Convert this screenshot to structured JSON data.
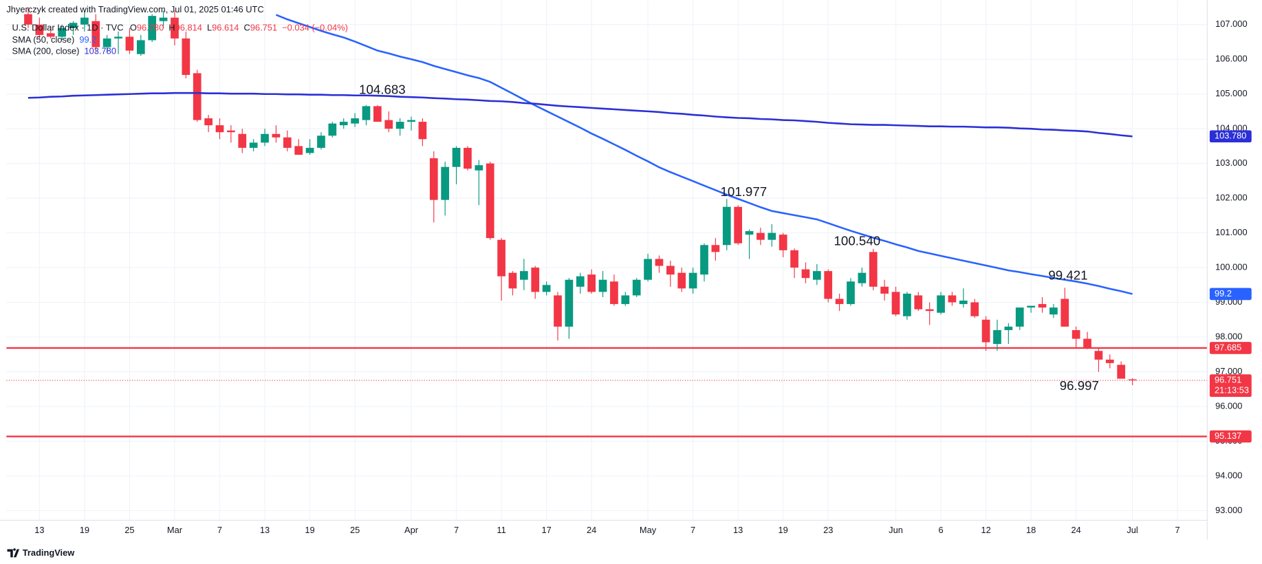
{
  "header": "Jhyerczyk created with TradingView.com, Jul 01, 2025 01:46 UTC",
  "footer": "TradingView",
  "chart_data": {
    "type": "candlestick",
    "title": "U.S. Dollar Index · 1D · TVC",
    "ohlc_legend": [
      {
        "key": "O",
        "value": "96.780"
      },
      {
        "key": "H",
        "value": "96.814"
      },
      {
        "key": "L",
        "value": "96.614"
      },
      {
        "key": "C",
        "value": "96.751"
      }
    ],
    "change": "−0.034 (−0.04%)",
    "up_color": "#089981",
    "down_color": "#f23645",
    "categories": [
      null,
      "13",
      null,
      null,
      null,
      "19",
      null,
      null,
      null,
      "25",
      null,
      null,
      null,
      "Mar",
      null,
      null,
      null,
      "7",
      null,
      null,
      null,
      "13",
      null,
      null,
      null,
      "19",
      null,
      null,
      null,
      "25",
      null,
      null,
      null,
      null,
      "Apr",
      null,
      null,
      null,
      "7",
      null,
      null,
      null,
      "11",
      null,
      null,
      null,
      "17",
      null,
      null,
      null,
      "24",
      null,
      null,
      null,
      null,
      "May",
      null,
      null,
      null,
      "7",
      null,
      null,
      null,
      "13",
      null,
      null,
      null,
      "19",
      null,
      null,
      null,
      "23",
      null,
      null,
      null,
      null,
      null,
      "Jun",
      null,
      null,
      null,
      "6",
      null,
      null,
      null,
      "12",
      null,
      null,
      null,
      "18",
      null,
      null,
      null,
      "24",
      null,
      null,
      null,
      null,
      "Jul",
      null,
      null,
      null,
      "7",
      null,
      null
    ],
    "open": [
      107.3,
      107.0,
      106.75,
      106.65,
      106.9,
      107.0,
      107.1,
      106.35,
      106.6,
      106.65,
      106.15,
      106.55,
      107.1,
      107.2,
      106.6,
      105.6,
      104.3,
      104.1,
      103.95,
      103.85,
      103.45,
      103.6,
      103.85,
      103.75,
      103.5,
      103.3,
      103.45,
      103.8,
      104.1,
      104.15,
      104.25,
      104.65,
      104.25,
      104.0,
      104.2,
      104.2,
      103.15,
      101.95,
      102.9,
      103.45,
      102.8,
      103.0,
      100.8,
      99.85,
      99.65,
      100.0,
      99.3,
      99.2,
      98.3,
      99.45,
      99.8,
      99.3,
      99.6,
      98.95,
      99.2,
      99.65,
      100.25,
      100.05,
      99.85,
      99.4,
      99.8,
      100.65,
      100.65,
      101.75,
      100.95,
      101.0,
      100.8,
      100.95,
      100.5,
      99.95,
      99.65,
      99.9,
      99.1,
      98.95,
      99.55,
      100.45,
      99.45,
      99.3,
      98.6,
      99.2,
      98.8,
      98.7,
      99.2,
      98.95,
      99.0,
      98.5,
      97.8,
      98.2,
      98.3,
      98.85,
      98.95,
      98.65,
      99.1,
      98.2,
      97.95,
      97.6,
      97.35,
      97.2,
      96.78,
      null,
      null,
      null,
      null,
      null,
      null
    ],
    "high": [
      107.5,
      107.2,
      106.95,
      107.0,
      107.1,
      107.4,
      107.3,
      106.7,
      106.8,
      106.9,
      106.7,
      107.3,
      107.4,
      107.4,
      106.8,
      105.7,
      104.4,
      104.3,
      104.1,
      104.0,
      103.7,
      104.0,
      104.1,
      103.95,
      103.7,
      103.7,
      103.9,
      104.2,
      104.3,
      104.45,
      104.683,
      104.68,
      104.5,
      104.3,
      104.35,
      104.3,
      103.35,
      103.05,
      103.5,
      103.5,
      103.1,
      103.05,
      100.85,
      99.9,
      100.25,
      100.05,
      99.6,
      99.3,
      99.7,
      99.85,
      99.95,
      99.9,
      99.8,
      99.3,
      99.7,
      100.4,
      100.35,
      100.2,
      100.0,
      100.0,
      100.7,
      100.85,
      101.977,
      101.8,
      101.1,
      101.15,
      101.25,
      101.0,
      100.55,
      100.15,
      100.1,
      99.95,
      99.25,
      99.7,
      100.0,
      100.54,
      99.65,
      99.45,
      99.3,
      99.3,
      99.0,
      99.3,
      99.3,
      99.4,
      99.1,
      98.6,
      98.5,
      98.4,
      98.85,
      98.9,
      99.15,
      98.95,
      99.421,
      98.3,
      98.15,
      97.7,
      97.5,
      97.3,
      96.814,
      null,
      null,
      null,
      null,
      null,
      null
    ],
    "low": [
      106.9,
      106.6,
      106.6,
      106.55,
      106.7,
      106.8,
      106.2,
      106.2,
      106.15,
      106.15,
      106.1,
      106.5,
      106.9,
      106.4,
      105.45,
      104.2,
      103.9,
      103.7,
      103.6,
      103.3,
      103.35,
      103.5,
      103.6,
      103.35,
      103.25,
      103.25,
      103.4,
      103.75,
      104.0,
      104.05,
      104.1,
      104.2,
      103.9,
      103.8,
      103.95,
      103.5,
      101.3,
      101.5,
      102.4,
      102.8,
      101.8,
      100.8,
      99.05,
      99.2,
      99.35,
      99.1,
      99.2,
      97.9,
      97.95,
      99.25,
      99.25,
      99.15,
      98.9,
      98.9,
      99.15,
      99.6,
      99.85,
      99.45,
      99.3,
      99.25,
      99.6,
      100.2,
      100.5,
      100.65,
      100.25,
      100.65,
      100.6,
      100.3,
      99.7,
      99.55,
      99.5,
      99.0,
      98.75,
      98.9,
      99.45,
      99.35,
      99.05,
      98.6,
      98.5,
      98.75,
      98.35,
      98.65,
      98.9,
      98.85,
      98.55,
      97.6,
      97.6,
      97.8,
      98.2,
      98.7,
      98.7,
      98.55,
      98.3,
      97.7,
      97.65,
      96.997,
      97.1,
      96.8,
      96.614,
      null,
      null,
      null,
      null,
      null,
      null
    ],
    "close": [
      107.0,
      106.7,
      106.65,
      106.9,
      107.05,
      107.2,
      106.35,
      106.6,
      106.65,
      106.25,
      106.55,
      107.25,
      107.2,
      106.6,
      105.55,
      104.25,
      104.1,
      103.9,
      103.9,
      103.45,
      103.6,
      103.85,
      103.75,
      103.45,
      103.25,
      103.45,
      103.8,
      104.15,
      104.2,
      104.3,
      104.65,
      104.2,
      104.0,
      104.2,
      104.25,
      103.7,
      101.95,
      102.9,
      103.45,
      102.85,
      102.95,
      100.85,
      99.75,
      99.4,
      99.9,
      99.3,
      99.5,
      98.3,
      99.65,
      99.75,
      99.3,
      99.65,
      98.95,
      99.2,
      99.65,
      100.25,
      100.05,
      99.8,
      99.4,
      99.85,
      100.65,
      100.45,
      101.75,
      100.7,
      101.05,
      100.8,
      101.0,
      100.5,
      100.0,
      99.7,
      99.9,
      99.1,
      98.95,
      99.6,
      99.85,
      99.45,
      99.25,
      98.65,
      99.25,
      98.8,
      98.75,
      99.2,
      99.0,
      99.05,
      98.6,
      97.85,
      98.2,
      98.3,
      98.85,
      98.9,
      98.85,
      98.85,
      98.3,
      97.95,
      97.7,
      97.35,
      97.25,
      96.8,
      96.751,
      null,
      null,
      null,
      null,
      null,
      null
    ],
    "series": [
      {
        "name": "SMA (50, close)",
        "legend_value": "99.2",
        "color": "#2962ff",
        "values": [
          null,
          null,
          null,
          null,
          null,
          null,
          null,
          null,
          null,
          null,
          null,
          null,
          null,
          null,
          null,
          null,
          null,
          null,
          null,
          null,
          null,
          null,
          107.28,
          107.15,
          107.04,
          106.93,
          106.82,
          106.72,
          106.63,
          106.51,
          106.38,
          106.25,
          106.17,
          106.08,
          106.0,
          105.92,
          105.81,
          105.72,
          105.63,
          105.54,
          105.46,
          105.35,
          105.18,
          105.01,
          104.84,
          104.67,
          104.51,
          104.35,
          104.19,
          104.03,
          103.86,
          103.71,
          103.55,
          103.39,
          103.22,
          103.06,
          102.89,
          102.75,
          102.62,
          102.49,
          102.36,
          102.23,
          102.1,
          101.98,
          101.86,
          101.74,
          101.63,
          101.57,
          101.51,
          101.45,
          101.39,
          101.28,
          101.17,
          101.06,
          100.96,
          100.86,
          100.77,
          100.67,
          100.58,
          100.48,
          100.41,
          100.34,
          100.27,
          100.2,
          100.13,
          100.06,
          99.99,
          99.92,
          99.87,
          99.81,
          99.76,
          99.7,
          99.65,
          99.6,
          99.54,
          99.47,
          99.39,
          99.32,
          99.24,
          null,
          null,
          null,
          null,
          null,
          null
        ]
      },
      {
        "name": "SMA (200, close)",
        "legend_value": "103.780",
        "color": "#2b2fd6",
        "values": [
          104.89,
          104.9,
          104.92,
          104.93,
          104.95,
          104.96,
          104.97,
          104.98,
          104.99,
          105.0,
          105.01,
          105.02,
          105.02,
          105.03,
          105.03,
          105.03,
          105.02,
          105.02,
          105.01,
          105.01,
          105.01,
          105.0,
          105.0,
          104.99,
          104.99,
          104.98,
          104.98,
          104.97,
          104.97,
          104.96,
          104.96,
          104.95,
          104.94,
          104.92,
          104.91,
          104.9,
          104.88,
          104.87,
          104.85,
          104.84,
          104.82,
          104.8,
          104.79,
          104.77,
          104.74,
          104.72,
          104.69,
          104.66,
          104.64,
          104.62,
          104.6,
          104.58,
          104.56,
          104.54,
          104.52,
          104.5,
          104.48,
          104.45,
          104.43,
          104.4,
          104.38,
          104.35,
          104.33,
          104.31,
          104.3,
          104.28,
          104.27,
          104.25,
          104.24,
          104.22,
          104.2,
          104.17,
          104.15,
          104.13,
          104.12,
          104.11,
          104.11,
          104.1,
          104.09,
          104.08,
          104.07,
          104.07,
          104.06,
          104.06,
          104.05,
          104.04,
          104.04,
          104.03,
          104.01,
          104.0,
          103.98,
          103.97,
          103.95,
          103.94,
          103.92,
          103.88,
          103.85,
          103.81,
          103.78,
          null,
          null,
          null,
          null,
          null,
          null
        ]
      }
    ],
    "levels": [
      {
        "value": 97.685,
        "label": "97.685",
        "color": "#f23645"
      },
      {
        "value": 95.137,
        "label": "95.137",
        "color": "#f23645"
      }
    ],
    "last_price": {
      "value": 96.751,
      "label": "96.751",
      "countdown": "21:13:53"
    },
    "annotations": [
      "104.683",
      "101.977",
      "100.540",
      "99.421",
      "96.997"
    ],
    "ylim": [
      92.63,
      107.7
    ],
    "yticks": [
      {
        "value": 93,
        "label": "93.000"
      },
      {
        "value": 94,
        "label": "94.000"
      },
      {
        "value": 95,
        "label": "95.000"
      },
      {
        "value": 96,
        "label": "96.000"
      },
      {
        "value": 97,
        "label": "97.000"
      },
      {
        "value": 98,
        "label": "98.000"
      },
      {
        "value": 99,
        "label": "99.000"
      },
      {
        "value": 100,
        "label": "100.000"
      },
      {
        "value": 101,
        "label": "101.000"
      },
      {
        "value": 102,
        "label": "102.000"
      },
      {
        "value": 103,
        "label": "103.000"
      },
      {
        "value": 104,
        "label": "104.000"
      },
      {
        "value": 105,
        "label": "105.000"
      },
      {
        "value": 106,
        "label": "106.000"
      },
      {
        "value": 107,
        "label": "107.000"
      }
    ],
    "grid": true
  }
}
